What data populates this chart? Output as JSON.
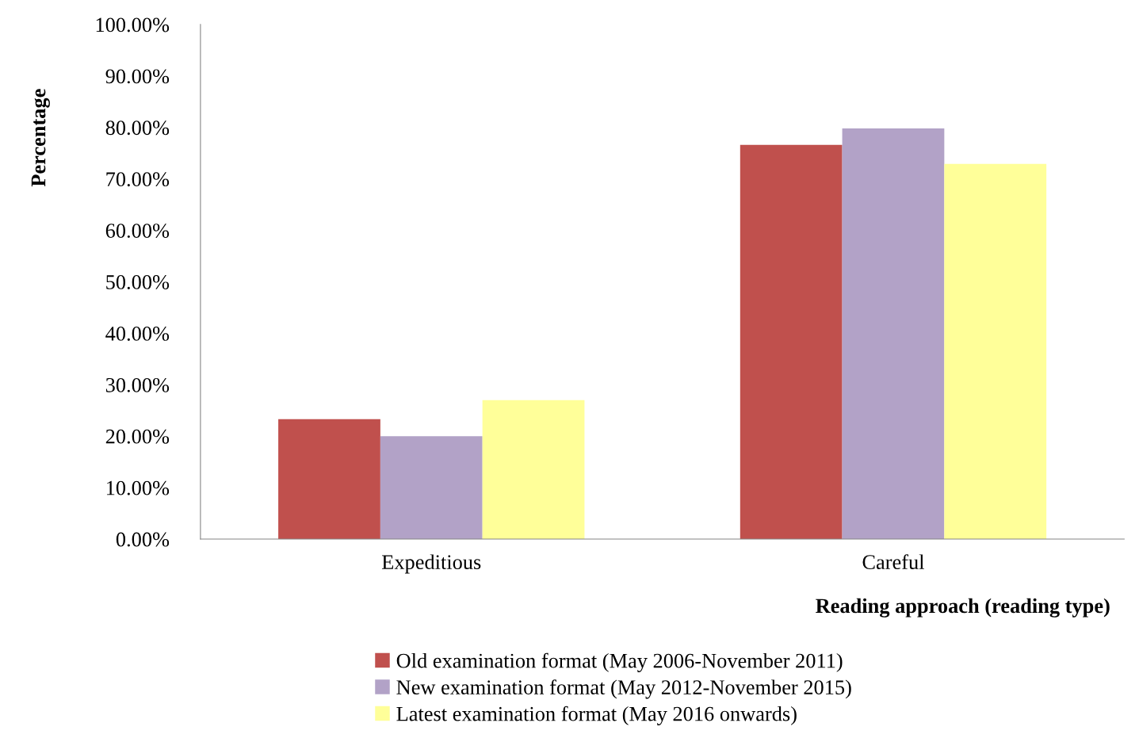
{
  "chart_data": {
    "type": "bar",
    "xlabel": "Reading approach (reading type)",
    "ylabel": "Percentage",
    "categories": [
      "Expeditious",
      "Careful"
    ],
    "series": [
      {
        "name": "Old examination format (May 2006-November 2011)",
        "color": "#c0504d",
        "values": [
          23.3,
          76.6
        ]
      },
      {
        "name": "New examination format (May 2012-November 2015)",
        "color": "#b2a2c7",
        "values": [
          20.0,
          79.8
        ]
      },
      {
        "name": "Latest examination format (May 2016 onwards)",
        "color": "#ffff99",
        "values": [
          27.0,
          72.9
        ]
      }
    ],
    "ylim": [
      0,
      100
    ],
    "yticks": [
      {
        "value": 0,
        "label": "0.00%"
      },
      {
        "value": 10,
        "label": "10.00%"
      },
      {
        "value": 20,
        "label": "20.00%"
      },
      {
        "value": 30,
        "label": "30.00%"
      },
      {
        "value": 40,
        "label": "40.00%"
      },
      {
        "value": 50,
        "label": "50.00%"
      },
      {
        "value": 60,
        "label": "60.00%"
      },
      {
        "value": 70,
        "label": "70.00%"
      },
      {
        "value": 80,
        "label": "80.00%"
      },
      {
        "value": 90,
        "label": "90.00%"
      },
      {
        "value": 100,
        "label": "100.00%"
      }
    ],
    "grid": false,
    "legend": "bottom"
  }
}
